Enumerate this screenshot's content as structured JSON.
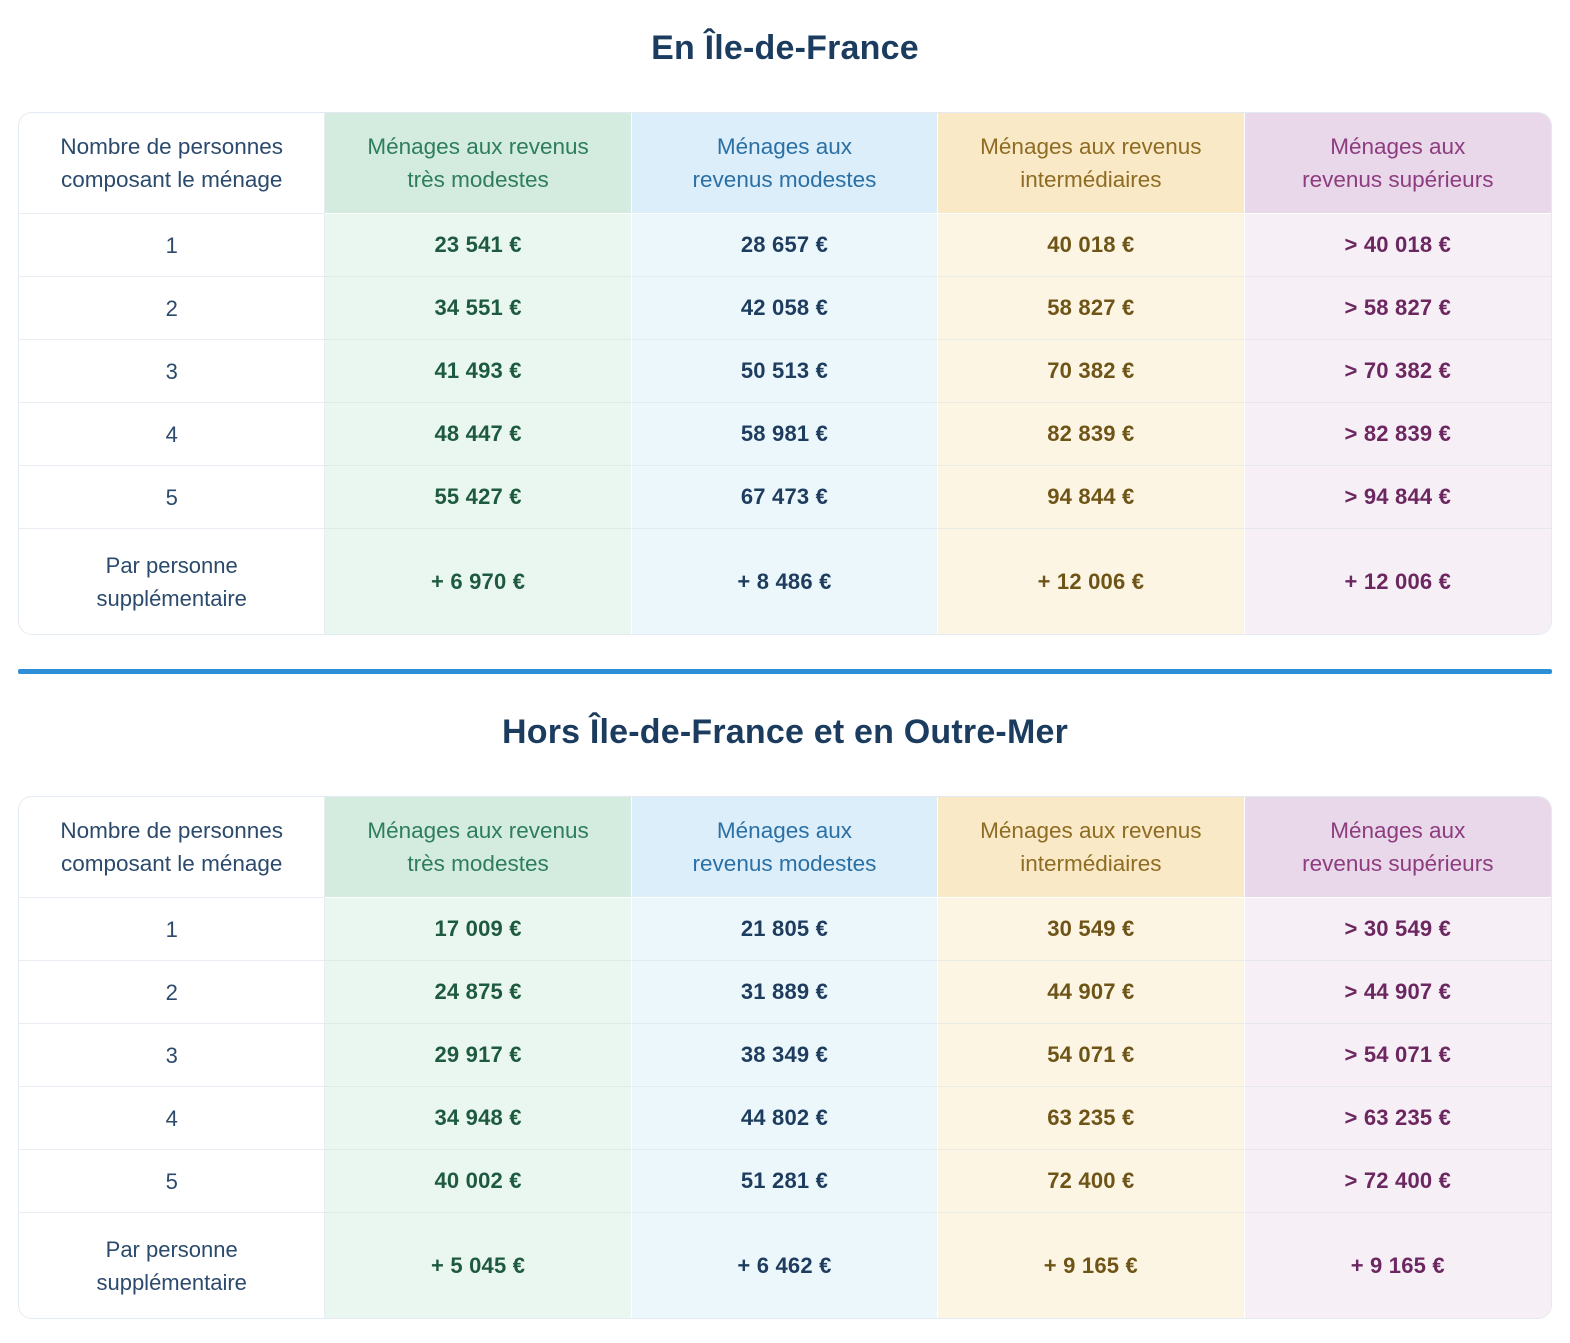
{
  "colors": {
    "title_text": "#1b3c5e",
    "label_text": "#2b4a6c",
    "divider": "#2d8fd5"
  },
  "themes": {
    "green": {
      "header_bg": "#d4ecdf",
      "cell_bg": "#e9f7f0",
      "header_text": "#2e7d5c",
      "value_text": "#1e5a40"
    },
    "blue": {
      "header_bg": "#dbeefa",
      "cell_bg": "#ecf7fc",
      "header_text": "#2b70a5",
      "value_text": "#1d3c5e"
    },
    "orange": {
      "header_bg": "#f9e9c7",
      "cell_bg": "#fdf5e3",
      "header_text": "#8e6c23",
      "value_text": "#6e5517"
    },
    "purple": {
      "header_bg": "#e9d8e9",
      "cell_bg": "#f6eff6",
      "header_text": "#8d3d7f",
      "value_text": "#6c2761"
    }
  },
  "tables": [
    {
      "title": "En Île-de-France",
      "row_header_lines": [
        "Nombre de personnes",
        "composant le ménage"
      ],
      "columns": [
        {
          "id": "tres-modestes",
          "theme": "green",
          "label_lines": [
            "Ménages aux revenus",
            "très modestes"
          ]
        },
        {
          "id": "modestes",
          "theme": "blue",
          "label_lines": [
            "Ménages aux",
            "revenus modestes"
          ]
        },
        {
          "id": "intermediaires",
          "theme": "orange",
          "label_lines": [
            "Ménages aux revenus",
            "intermédiaires"
          ]
        },
        {
          "id": "superieurs",
          "theme": "purple",
          "label_lines": [
            "Ménages aux",
            "revenus supérieurs"
          ]
        }
      ],
      "rows": [
        {
          "label_lines": [
            "1"
          ],
          "values": [
            "23 541 €",
            "28 657 €",
            "40 018 €",
            "> 40 018 €"
          ]
        },
        {
          "label_lines": [
            "2"
          ],
          "values": [
            "34 551 €",
            "42 058 €",
            "58 827 €",
            "> 58 827 €"
          ]
        },
        {
          "label_lines": [
            "3"
          ],
          "values": [
            "41 493 €",
            "50 513 €",
            "70 382 €",
            "> 70 382 €"
          ]
        },
        {
          "label_lines": [
            "4"
          ],
          "values": [
            "48 447 €",
            "58 981 €",
            "82 839 €",
            "> 82 839 €"
          ]
        },
        {
          "label_lines": [
            "5"
          ],
          "values": [
            "55 427 €",
            "67 473 €",
            "94 844 €",
            "> 94 844 €"
          ]
        },
        {
          "label_lines": [
            "Par personne",
            "supplémentaire"
          ],
          "values": [
            "+ 6 970 €",
            "+ 8 486 €",
            "+ 12 006 €",
            "+ 12 006 €"
          ]
        }
      ]
    },
    {
      "title": "Hors Île-de-France et en Outre-Mer",
      "row_header_lines": [
        "Nombre de personnes",
        "composant le ménage"
      ],
      "columns": [
        {
          "id": "tres-modestes",
          "theme": "green",
          "label_lines": [
            "Ménages aux revenus",
            "très modestes"
          ]
        },
        {
          "id": "modestes",
          "theme": "blue",
          "label_lines": [
            "Ménages aux",
            "revenus modestes"
          ]
        },
        {
          "id": "intermediaires",
          "theme": "orange",
          "label_lines": [
            "Ménages aux revenus",
            "intermédiaires"
          ]
        },
        {
          "id": "superieurs",
          "theme": "purple",
          "label_lines": [
            "Ménages aux",
            "revenus supérieurs"
          ]
        }
      ],
      "rows": [
        {
          "label_lines": [
            "1"
          ],
          "values": [
            "17 009 €",
            "21 805 €",
            "30 549 €",
            "> 30 549 €"
          ]
        },
        {
          "label_lines": [
            "2"
          ],
          "values": [
            "24 875 €",
            "31 889 €",
            "44 907 €",
            "> 44 907 €"
          ]
        },
        {
          "label_lines": [
            "3"
          ],
          "values": [
            "29 917 €",
            "38 349 €",
            "54 071 €",
            "> 54 071 €"
          ]
        },
        {
          "label_lines": [
            "4"
          ],
          "values": [
            "34 948 €",
            "44 802 €",
            "63 235 €",
            "> 63 235 €"
          ]
        },
        {
          "label_lines": [
            "5"
          ],
          "values": [
            "40 002 €",
            "51 281 €",
            "72 400 €",
            "> 72 400 €"
          ]
        },
        {
          "label_lines": [
            "Par personne",
            "supplémentaire"
          ],
          "values": [
            "+ 5 045 €",
            "+ 6 462 €",
            "+ 9 165 €",
            "+ 9 165 €"
          ]
        }
      ]
    }
  ]
}
